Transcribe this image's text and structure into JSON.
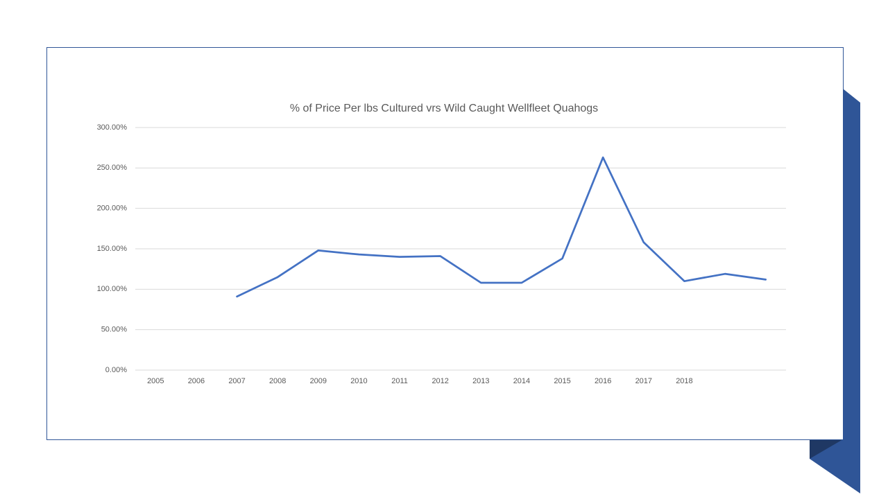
{
  "chart_data": {
    "type": "line",
    "title": "% of Price Per lbs Cultured vrs Wild Caught Wellfleet Quahogs",
    "categories": [
      "2005",
      "2006",
      "2007",
      "2008",
      "2009",
      "2010",
      "2011",
      "2012",
      "2013",
      "2014",
      "2015",
      "2016",
      "2017",
      "2018",
      null,
      null
    ],
    "values": [
      null,
      null,
      91,
      115,
      148,
      143,
      140,
      141,
      108,
      108,
      138,
      263,
      158,
      110,
      119,
      112
    ],
    "color": "#4472c4",
    "ylim": [
      0,
      300
    ],
    "yticks": [
      {
        "value": 0,
        "label": "0.00%"
      },
      {
        "value": 50,
        "label": "50.00%"
      },
      {
        "value": 100,
        "label": "100.00%"
      },
      {
        "value": 150,
        "label": "150.00%"
      },
      {
        "value": 200,
        "label": "200.00%"
      },
      {
        "value": 250,
        "label": "250.00%"
      },
      {
        "value": 300,
        "label": "300.00%"
      }
    ],
    "grid": true
  }
}
